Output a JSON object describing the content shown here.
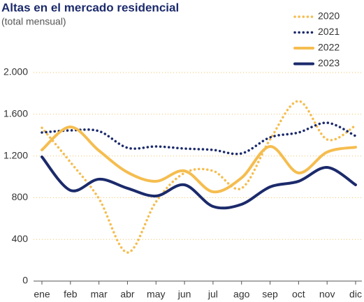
{
  "chart_data": {
    "type": "line",
    "title": "Altas en el mercado residencial",
    "subtitle": "(total mensual)",
    "categories": [
      "ene",
      "feb",
      "mar",
      "abr",
      "may",
      "jun",
      "jul",
      "ago",
      "sep",
      "oct",
      "nov",
      "dic"
    ],
    "ylim": [
      0,
      2000
    ],
    "yticks": [
      0,
      400,
      800,
      {
        "value": 1200,
        "label": "1.200"
      },
      {
        "value": 1600,
        "label": "1.600"
      },
      {
        "value": 2000,
        "label": "2.000"
      }
    ],
    "grid": true,
    "series": [
      {
        "name": "2020",
        "color": "#f5bd4f",
        "style": "dotted",
        "values": [
          1470,
          1140,
          790,
          274,
          760,
          1037,
          1057,
          890,
          1358,
          1726,
          1358,
          1492
        ]
      },
      {
        "name": "2021",
        "color": "#1b2a6b",
        "style": "dotted",
        "values": [
          1425,
          1445,
          1438,
          1278,
          1291,
          1271,
          1258,
          1224,
          1378,
          1425,
          1518,
          1391
        ]
      },
      {
        "name": "2022",
        "color": "#f5bd4f",
        "style": "solid",
        "values": [
          1258,
          1478,
          1251,
          1043,
          957,
          1057,
          856,
          990,
          1291,
          1037,
          1237,
          1284
        ]
      },
      {
        "name": "2023",
        "color": "#1b2a6b",
        "style": "solid",
        "values": [
          1191,
          870,
          977,
          890,
          816,
          923,
          716,
          736,
          903,
          957,
          1090,
          923
        ]
      }
    ]
  }
}
